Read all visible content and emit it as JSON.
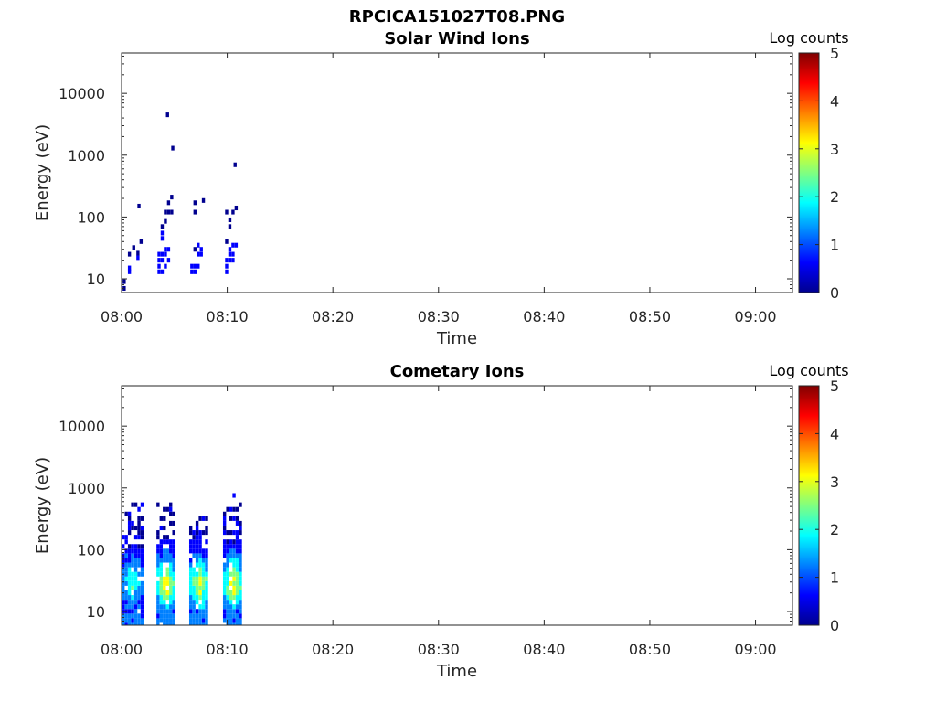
{
  "figure_title": "RPCICA151027T08.PNG",
  "colormap": [
    "#00008f",
    "#0000ff",
    "#0080ff",
    "#00ffff",
    "#80ff80",
    "#ffff00",
    "#ff8000",
    "#ff0000",
    "#800000"
  ],
  "chart_data": [
    {
      "type": "heatmap",
      "title": "Solar Wind Ions",
      "xlabel": "Time",
      "ylabel": "Energy (eV)",
      "x_ticks": [
        "08:00",
        "08:10",
        "08:20",
        "08:30",
        "08:40",
        "08:50",
        "09:00"
      ],
      "xlim_minutes": [
        0,
        63.5
      ],
      "y_scale": "log",
      "ylim": [
        6,
        45000
      ],
      "y_ticks": [
        "10",
        "100",
        "1000",
        "10000"
      ],
      "colorbar": {
        "label": "Log counts",
        "range": [
          0,
          5
        ],
        "ticks": [
          "0",
          "1",
          "2",
          "3",
          "4",
          "5"
        ]
      },
      "data_points": [
        {
          "t": 0.1,
          "e": 7,
          "v": 0.3
        },
        {
          "t": 0.1,
          "e": 9,
          "v": 0.3
        },
        {
          "t": 0.6,
          "e": 13,
          "v": 0.6
        },
        {
          "t": 0.6,
          "e": 15,
          "v": 0.6
        },
        {
          "t": 0.6,
          "e": 25,
          "v": 0.3
        },
        {
          "t": 1.0,
          "e": 32,
          "v": 0.3
        },
        {
          "t": 1.4,
          "e": 22,
          "v": 0.4
        },
        {
          "t": 1.4,
          "e": 26,
          "v": 0.3
        },
        {
          "t": 1.7,
          "e": 40,
          "v": 0.3
        },
        {
          "t": 1.5,
          "e": 150,
          "v": 0.3
        },
        {
          "t": 3.4,
          "e": 13,
          "v": 0.5
        },
        {
          "t": 3.4,
          "e": 16,
          "v": 0.5
        },
        {
          "t": 3.4,
          "e": 20,
          "v": 0.9
        },
        {
          "t": 3.4,
          "e": 25,
          "v": 0.9
        },
        {
          "t": 3.7,
          "e": 13,
          "v": 0.5
        },
        {
          "t": 3.7,
          "e": 20,
          "v": 0.9
        },
        {
          "t": 3.7,
          "e": 25,
          "v": 0.9
        },
        {
          "t": 3.7,
          "e": 45,
          "v": 0.4
        },
        {
          "t": 3.7,
          "e": 55,
          "v": 0.4
        },
        {
          "t": 3.7,
          "e": 70,
          "v": 0.3
        },
        {
          "t": 4.0,
          "e": 16,
          "v": 0.5
        },
        {
          "t": 4.0,
          "e": 25,
          "v": 0.6
        },
        {
          "t": 4.0,
          "e": 30,
          "v": 0.6
        },
        {
          "t": 4.0,
          "e": 85,
          "v": 0.3
        },
        {
          "t": 4.0,
          "e": 120,
          "v": 0.3
        },
        {
          "t": 4.3,
          "e": 20,
          "v": 0.5
        },
        {
          "t": 4.3,
          "e": 30,
          "v": 0.6
        },
        {
          "t": 4.3,
          "e": 120,
          "v": 0.3
        },
        {
          "t": 4.3,
          "e": 170,
          "v": 0.3
        },
        {
          "t": 4.6,
          "e": 120,
          "v": 0.3
        },
        {
          "t": 4.6,
          "e": 210,
          "v": 0.3
        },
        {
          "t": 4.2,
          "e": 4500,
          "v": 0.3
        },
        {
          "t": 4.7,
          "e": 1300,
          "v": 0.3
        },
        {
          "t": 6.5,
          "e": 13,
          "v": 0.5
        },
        {
          "t": 6.5,
          "e": 16,
          "v": 0.5
        },
        {
          "t": 6.8,
          "e": 13,
          "v": 0.5
        },
        {
          "t": 6.8,
          "e": 16,
          "v": 0.6
        },
        {
          "t": 6.8,
          "e": 30,
          "v": 0.3
        },
        {
          "t": 6.8,
          "e": 120,
          "v": 0.3
        },
        {
          "t": 7.1,
          "e": 16,
          "v": 0.5
        },
        {
          "t": 7.1,
          "e": 25,
          "v": 0.7
        },
        {
          "t": 7.1,
          "e": 35,
          "v": 0.8
        },
        {
          "t": 7.4,
          "e": 25,
          "v": 0.6
        },
        {
          "t": 7.4,
          "e": 30,
          "v": 0.6
        },
        {
          "t": 6.8,
          "e": 170,
          "v": 0.3
        },
        {
          "t": 7.6,
          "e": 185,
          "v": 0.3
        },
        {
          "t": 9.8,
          "e": 13,
          "v": 0.4
        },
        {
          "t": 9.8,
          "e": 16,
          "v": 0.4
        },
        {
          "t": 9.8,
          "e": 20,
          "v": 0.4
        },
        {
          "t": 9.8,
          "e": 40,
          "v": 0.3
        },
        {
          "t": 9.8,
          "e": 120,
          "v": 0.3
        },
        {
          "t": 10.1,
          "e": 20,
          "v": 0.5
        },
        {
          "t": 10.1,
          "e": 25,
          "v": 0.7
        },
        {
          "t": 10.1,
          "e": 30,
          "v": 0.7
        },
        {
          "t": 10.1,
          "e": 70,
          "v": 0.3
        },
        {
          "t": 10.1,
          "e": 90,
          "v": 0.3
        },
        {
          "t": 10.4,
          "e": 20,
          "v": 0.6
        },
        {
          "t": 10.4,
          "e": 25,
          "v": 0.6
        },
        {
          "t": 10.4,
          "e": 35,
          "v": 0.7
        },
        {
          "t": 10.4,
          "e": 120,
          "v": 0.3
        },
        {
          "t": 10.7,
          "e": 35,
          "v": 0.6
        },
        {
          "t": 10.7,
          "e": 140,
          "v": 0.3
        },
        {
          "t": 10.6,
          "e": 700,
          "v": 0.3
        }
      ]
    },
    {
      "type": "heatmap",
      "title": "Cometary Ions",
      "xlabel": "Time",
      "ylabel": "Energy (eV)",
      "x_ticks": [
        "08:00",
        "08:10",
        "08:20",
        "08:30",
        "08:40",
        "08:50",
        "09:00"
      ],
      "xlim_minutes": [
        0,
        63.5
      ],
      "y_scale": "log",
      "ylim": [
        6,
        45000
      ],
      "y_ticks": [
        "10",
        "100",
        "1000",
        "10000"
      ],
      "colorbar": {
        "label": "Log counts",
        "range": [
          0,
          5
        ],
        "ticks": [
          "0",
          "1",
          "2",
          "3",
          "4",
          "5"
        ]
      },
      "bursts": [
        {
          "t0": 0.0,
          "t1": 1.8,
          "e_max": 700,
          "peak": 1.7
        },
        {
          "t0": 3.3,
          "t1": 4.9,
          "e_max": 600,
          "peak": 2.6
        },
        {
          "t0": 6.4,
          "t1": 8.1,
          "e_max": 360,
          "peak": 2.4
        },
        {
          "t0": 9.6,
          "t1": 11.2,
          "e_max": 1050,
          "peak": 2.6
        }
      ]
    }
  ]
}
